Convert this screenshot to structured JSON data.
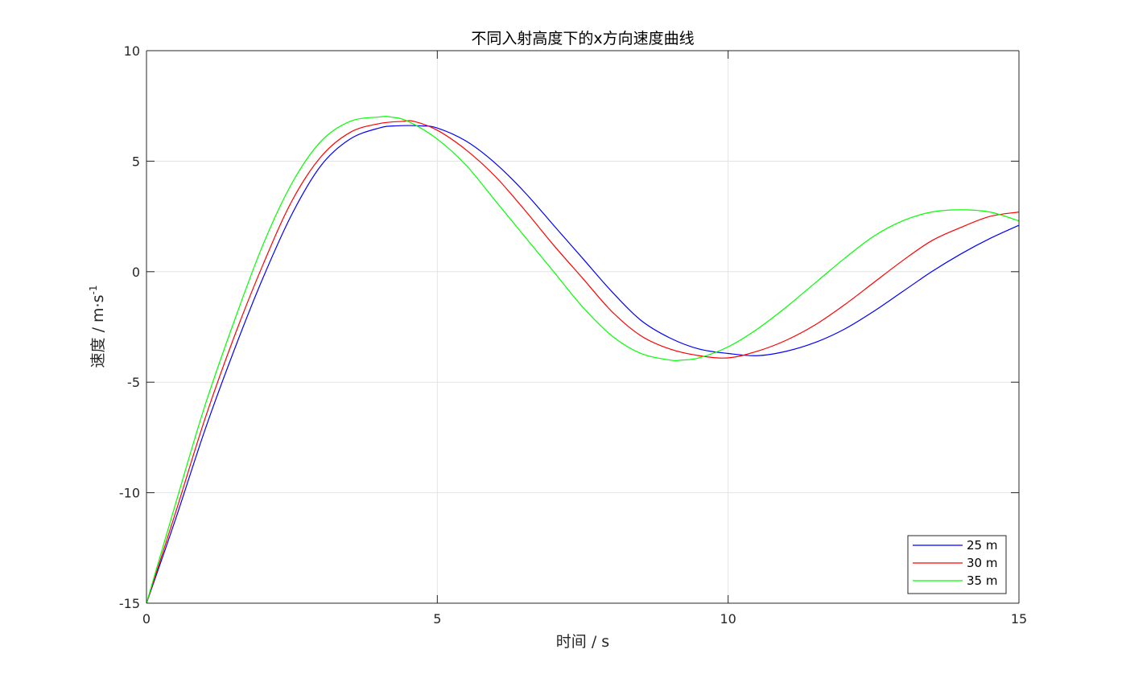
{
  "chart_data": {
    "type": "line",
    "title": "不同入射高度下的x方向速度曲线",
    "xlabel": "时间 / s",
    "ylabel_main": "速度  /  m·s",
    "ylabel_sup": "-1",
    "xlim": [
      0,
      15
    ],
    "ylim": [
      -15,
      10
    ],
    "xticks": [
      0,
      5,
      10,
      15
    ],
    "xtick_labels": [
      "0",
      "5",
      "10",
      "15"
    ],
    "yticks": [
      -15,
      -10,
      -5,
      0,
      5,
      10
    ],
    "ytick_labels": [
      "-15",
      "-10",
      "-5",
      "0",
      "5",
      "10"
    ],
    "grid": true,
    "legend_position": "bottom-right",
    "series": [
      {
        "name": "25 m",
        "color": "#0000ff",
        "x": [
          0,
          0.5,
          1,
          1.5,
          2,
          2.5,
          3,
          3.5,
          4,
          4.3,
          4.7,
          5,
          5.5,
          6,
          6.5,
          7,
          7.5,
          8,
          8.5,
          9,
          9.5,
          10,
          10.5,
          11,
          11.5,
          12,
          12.5,
          13,
          13.5,
          14,
          14.5,
          15
        ],
        "y": [
          -15,
          -11.2,
          -7.2,
          -3.6,
          -0.3,
          2.6,
          4.8,
          6.0,
          6.5,
          6.6,
          6.6,
          6.5,
          5.9,
          4.9,
          3.6,
          2.1,
          0.6,
          -0.9,
          -2.2,
          -3.0,
          -3.5,
          -3.7,
          -3.8,
          -3.6,
          -3.2,
          -2.6,
          -1.8,
          -0.9,
          0.0,
          0.8,
          1.5,
          2.1
        ]
      },
      {
        "name": "30 m",
        "color": "#ff0000",
        "x": [
          0,
          0.5,
          1,
          1.5,
          2,
          2.5,
          3,
          3.5,
          4,
          4.4,
          4.6,
          5,
          5.5,
          6,
          6.5,
          7,
          7.5,
          8,
          8.5,
          9,
          9.5,
          10,
          10.5,
          11,
          11.5,
          12,
          12.5,
          13,
          13.5,
          14,
          14.5,
          15
        ],
        "y": [
          -15,
          -10.9,
          -6.7,
          -3.0,
          0.3,
          3.2,
          5.2,
          6.3,
          6.7,
          6.8,
          6.8,
          6.4,
          5.5,
          4.3,
          2.8,
          1.2,
          -0.3,
          -1.8,
          -2.9,
          -3.5,
          -3.8,
          -3.9,
          -3.6,
          -3.1,
          -2.4,
          -1.5,
          -0.5,
          0.5,
          1.4,
          2.0,
          2.5,
          2.7
        ]
      },
      {
        "name": "35 m",
        "color": "#00ff00",
        "x": [
          0,
          0.5,
          1,
          1.5,
          2,
          2.5,
          3,
          3.5,
          4,
          4.2,
          4.5,
          5,
          5.5,
          6,
          6.5,
          7,
          7.5,
          8,
          8.5,
          9,
          9.2,
          9.5,
          10,
          10.5,
          11,
          11.5,
          12,
          12.5,
          13,
          13.5,
          14,
          14.5,
          15
        ],
        "y": [
          -15,
          -10.5,
          -6.1,
          -2.3,
          1.2,
          4.0,
          5.9,
          6.8,
          7.0,
          7.0,
          6.8,
          6.0,
          4.8,
          3.2,
          1.6,
          0.0,
          -1.6,
          -2.9,
          -3.7,
          -4.0,
          -4.0,
          -3.9,
          -3.4,
          -2.6,
          -1.6,
          -0.5,
          0.6,
          1.6,
          2.3,
          2.7,
          2.8,
          2.7,
          2.3
        ]
      }
    ]
  }
}
